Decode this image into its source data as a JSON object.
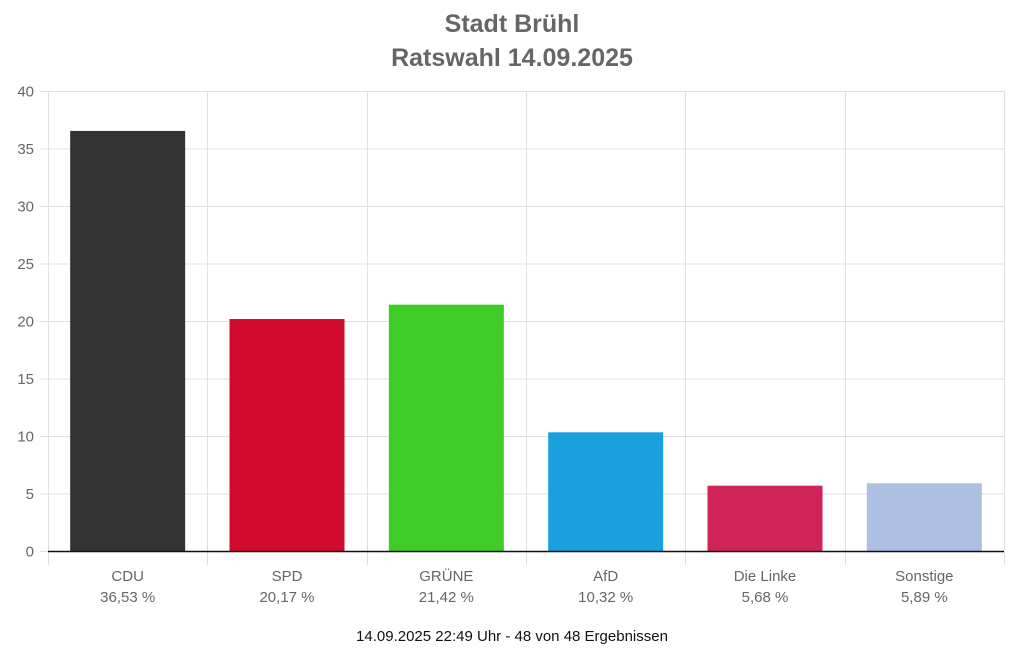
{
  "chart_data": {
    "type": "bar",
    "title": "Stadt Brühl",
    "subtitle": "Ratswahl 14.09.2025",
    "categories": [
      "CDU",
      "SPD",
      "GRÜNE",
      "AfD",
      "Die Linke",
      "Sonstige"
    ],
    "values": [
      36.53,
      20.17,
      21.42,
      10.32,
      5.68,
      5.89
    ],
    "value_labels": [
      "36,53 %",
      "20,17 %",
      "21,42 %",
      "10,32 %",
      "5,68 %",
      "5,89 %"
    ],
    "colors": [
      "#333333",
      "#d20a2d",
      "#3ecc26",
      "#1aa0dd",
      "#d02358",
      "#adbfe3"
    ],
    "ylim": [
      0,
      40
    ],
    "yticks": [
      0,
      5,
      10,
      15,
      20,
      25,
      30,
      35,
      40
    ],
    "xlabel": "",
    "ylabel": "",
    "grid": true
  },
  "footer": "14.09.2025 22:49 Uhr - 48 von 48 Ergebnissen"
}
